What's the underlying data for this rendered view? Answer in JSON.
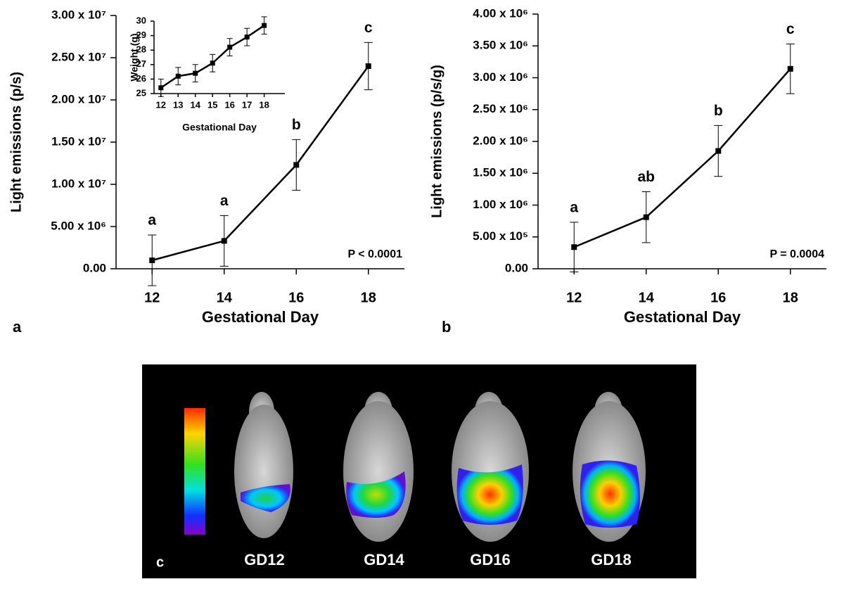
{
  "chart_data": [
    {
      "type": "line",
      "panel_label": "a",
      "x_label": "Gestational Day",
      "y_label": "Light emissions (p/s)",
      "p_value": "P < 0.0001",
      "x": [
        12,
        14,
        16,
        18
      ],
      "values": [
        1000000,
        3300000,
        12300000,
        24000000
      ],
      "errors": [
        3000000,
        3000000,
        3000000,
        2800000
      ],
      "letters": [
        "a",
        "a",
        "b",
        "c"
      ],
      "color": "#000000",
      "xlim": [
        11,
        19
      ],
      "xticks": [
        12,
        14,
        16,
        18
      ],
      "ylim": [
        0,
        30000000
      ],
      "yticks": [
        {
          "value": 0,
          "label": "0.00"
        },
        {
          "value": 5000000,
          "label": "5.00 x 10⁶"
        },
        {
          "value": 10000000,
          "label": "1.00 x 10⁷"
        },
        {
          "value": 15000000,
          "label": "1.50 x 10⁷"
        },
        {
          "value": 20000000,
          "label": "2.00 x 10⁷"
        },
        {
          "value": 25000000,
          "label": "2.50 x 10⁷"
        },
        {
          "value": 30000000,
          "label": "3.00 x 10⁷"
        }
      ]
    },
    {
      "type": "line",
      "x_label": "Gestational Day",
      "y_label": "Weight (g)",
      "x": [
        12,
        13,
        14,
        15,
        16,
        17,
        18
      ],
      "values": [
        25.4,
        26.2,
        26.4,
        27.1,
        28.2,
        28.9,
        29.7
      ],
      "errors": [
        0.6,
        0.6,
        0.6,
        0.6,
        0.6,
        0.6,
        0.6
      ],
      "color": "#000000",
      "xlim": [
        11.6,
        19.2
      ],
      "xticks": [
        12,
        13,
        14,
        15,
        16,
        17,
        18
      ],
      "ylim": [
        25,
        30
      ],
      "yticks": [
        25,
        26,
        27,
        28,
        29,
        30
      ]
    },
    {
      "type": "line",
      "panel_label": "b",
      "x_label": "Gestational Day",
      "y_label": "Light emissions  (p/s/g)",
      "p_value": "P = 0.0004",
      "x": [
        12,
        14,
        16,
        18
      ],
      "values": [
        340000,
        810000,
        1850000,
        3140000
      ],
      "errors": [
        390000,
        400000,
        400000,
        390000
      ],
      "letters": [
        "a",
        "ab",
        "b",
        "c"
      ],
      "color": "#000000",
      "xlim": [
        11,
        19
      ],
      "xticks": [
        12,
        14,
        16,
        18
      ],
      "ylim": [
        0,
        4000000
      ],
      "yticks": [
        {
          "value": 0,
          "label": "0.00"
        },
        {
          "value": 500000,
          "label": "5.00 x 10⁵"
        },
        {
          "value": 1000000,
          "label": "1.00 x 10⁶"
        },
        {
          "value": 1500000,
          "label": "1.50 x 10⁶"
        },
        {
          "value": 2000000,
          "label": "2.00 x 10⁶"
        },
        {
          "value": 2500000,
          "label": "2.50 x 10⁶"
        },
        {
          "value": 3000000,
          "label": "3.00 x 10⁶"
        },
        {
          "value": 3500000,
          "label": "3.50 x 10⁶"
        },
        {
          "value": 4000000,
          "label": "4.00 x 10⁶"
        }
      ]
    }
  ],
  "panel_c": {
    "label": "c",
    "captions": [
      "GD12",
      "GD14",
      "GD16",
      "GD18"
    ]
  }
}
